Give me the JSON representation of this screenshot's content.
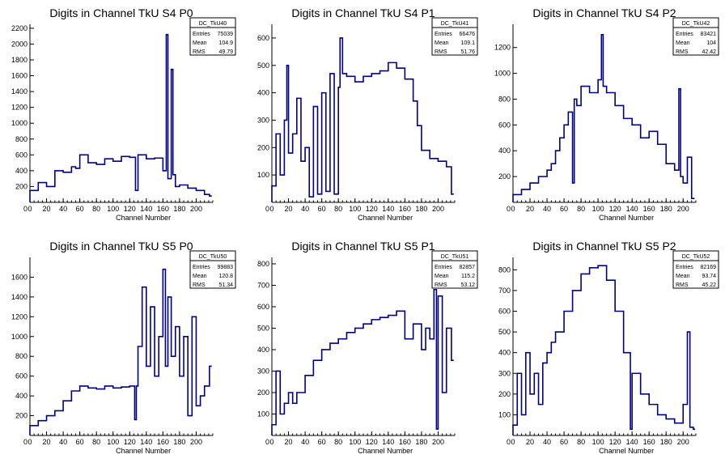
{
  "colors": {
    "histogram": "#000080",
    "axis": "#000000",
    "background": "#ffffff"
  },
  "chart_data": [
    {
      "type": "bar",
      "title": "Digits in Channel TkU S4 P0",
      "xlabel": "Channel Number",
      "ylabel": "",
      "xlim": [
        0,
        220
      ],
      "ylim": [
        0,
        2250
      ],
      "xticks": [
        0,
        20,
        40,
        60,
        80,
        100,
        120,
        140,
        160,
        180,
        200
      ],
      "yticks": [
        200,
        400,
        600,
        800,
        1000,
        1200,
        1400,
        1600,
        1800,
        2000,
        2200
      ],
      "stats": {
        "name": "DC_TkU40",
        "rows": [
          {
            "label": "Entries",
            "value": "75039"
          },
          {
            "label": "Mean",
            "value": "104.9"
          },
          {
            "label": "RMS",
            "value": "49.79"
          }
        ]
      },
      "x": [
        0,
        10,
        20,
        30,
        40,
        50,
        55,
        60,
        70,
        80,
        90,
        100,
        110,
        120,
        127,
        130,
        140,
        150,
        160,
        164,
        166,
        170,
        172,
        175,
        180,
        190,
        200,
        210,
        216
      ],
      "values": [
        150,
        250,
        200,
        400,
        380,
        450,
        430,
        600,
        500,
        480,
        550,
        520,
        580,
        570,
        150,
        600,
        550,
        560,
        400,
        2120,
        300,
        1680,
        350,
        200,
        220,
        180,
        150,
        100,
        80
      ]
    },
    {
      "type": "bar",
      "title": "Digits in Channel TkU S4 P1",
      "xlabel": "Channel Number",
      "ylabel": "",
      "xlim": [
        0,
        220
      ],
      "ylim": [
        0,
        650
      ],
      "xticks": [
        0,
        20,
        40,
        60,
        80,
        100,
        120,
        140,
        160,
        180,
        200
      ],
      "yticks": [
        100,
        200,
        300,
        400,
        500,
        600
      ],
      "stats": {
        "name": "DC_TkU41",
        "rows": [
          {
            "label": "Entries",
            "value": "66476"
          },
          {
            "label": "Mean",
            "value": "109.1"
          },
          {
            "label": "RMS",
            "value": "51.76"
          }
        ]
      },
      "x": [
        0,
        5,
        10,
        15,
        18,
        20,
        25,
        30,
        35,
        40,
        45,
        50,
        55,
        60,
        65,
        70,
        75,
        80,
        82,
        85,
        90,
        100,
        110,
        120,
        130,
        140,
        150,
        160,
        170,
        175,
        180,
        190,
        200,
        210,
        216
      ],
      "values": [
        60,
        250,
        100,
        300,
        500,
        180,
        250,
        380,
        150,
        200,
        20,
        350,
        30,
        400,
        40,
        470,
        30,
        420,
        600,
        470,
        460,
        440,
        460,
        470,
        480,
        510,
        490,
        450,
        370,
        280,
        190,
        160,
        150,
        130,
        30
      ]
    },
    {
      "type": "bar",
      "title": "Digits in Channel TkU S4 P2",
      "xlabel": "Channel Number",
      "ylabel": "",
      "xlim": [
        0,
        215
      ],
      "ylim": [
        0,
        1380
      ],
      "xticks": [
        0,
        20,
        40,
        60,
        80,
        100,
        120,
        140,
        160,
        180,
        200
      ],
      "yticks": [
        200,
        400,
        600,
        800,
        1000,
        1200
      ],
      "stats": {
        "name": "DC_TkU42",
        "rows": [
          {
            "label": "Entries",
            "value": "83421"
          },
          {
            "label": "Mean",
            "value": "104"
          },
          {
            "label": "RMS",
            "value": "42.42"
          }
        ]
      },
      "x": [
        0,
        10,
        20,
        30,
        40,
        45,
        50,
        55,
        60,
        65,
        70,
        72,
        75,
        80,
        90,
        100,
        104,
        106,
        110,
        120,
        130,
        140,
        150,
        160,
        170,
        180,
        190,
        195,
        197,
        200,
        205,
        210
      ],
      "values": [
        60,
        100,
        150,
        200,
        250,
        300,
        400,
        500,
        600,
        700,
        150,
        800,
        750,
        900,
        850,
        950,
        1300,
        900,
        850,
        750,
        650,
        600,
        500,
        550,
        450,
        300,
        250,
        880,
        200,
        150,
        350,
        30
      ]
    },
    {
      "type": "bar",
      "title": "Digits in Channel TkU S5 P0",
      "xlabel": "Channel Number",
      "ylabel": "",
      "xlim": [
        0,
        220
      ],
      "ylim": [
        0,
        1800
      ],
      "xticks": [
        0,
        20,
        40,
        60,
        80,
        100,
        120,
        140,
        160,
        180,
        200
      ],
      "yticks": [
        200,
        400,
        600,
        800,
        1000,
        1200,
        1400,
        1600
      ],
      "stats": {
        "name": "DC_TkU50",
        "rows": [
          {
            "label": "Entries",
            "value": "99883"
          },
          {
            "label": "Mean",
            "value": "120.8"
          },
          {
            "label": "RMS",
            "value": "51.34"
          }
        ]
      },
      "x": [
        0,
        10,
        20,
        30,
        40,
        50,
        60,
        70,
        80,
        90,
        100,
        110,
        120,
        126,
        128,
        130,
        135,
        140,
        145,
        150,
        155,
        160,
        163,
        166,
        170,
        175,
        180,
        185,
        190,
        195,
        200,
        205,
        210,
        216
      ],
      "values": [
        100,
        150,
        200,
        250,
        350,
        450,
        500,
        480,
        470,
        500,
        480,
        490,
        500,
        160,
        500,
        900,
        1500,
        700,
        1300,
        600,
        1000,
        1680,
        700,
        1400,
        800,
        1100,
        600,
        1000,
        200,
        1200,
        300,
        400,
        500,
        700
      ]
    },
    {
      "type": "bar",
      "title": "Digits in Channel TkU S5 P1",
      "xlabel": "Channel Number",
      "ylabel": "",
      "xlim": [
        0,
        220
      ],
      "ylim": [
        0,
        830
      ],
      "xticks": [
        0,
        20,
        40,
        60,
        80,
        100,
        120,
        140,
        160,
        180,
        200
      ],
      "yticks": [
        100,
        200,
        300,
        400,
        500,
        600,
        700,
        800
      ],
      "stats": {
        "name": "DC_TkU51",
        "rows": [
          {
            "label": "Entries",
            "value": "82857"
          },
          {
            "label": "Mean",
            "value": "115.2"
          },
          {
            "label": "RMS",
            "value": "53.12"
          }
        ]
      },
      "x": [
        0,
        5,
        10,
        15,
        20,
        25,
        30,
        40,
        50,
        60,
        70,
        80,
        90,
        100,
        110,
        120,
        130,
        140,
        150,
        160,
        170,
        180,
        185,
        190,
        195,
        198,
        200,
        205,
        210,
        216
      ],
      "values": [
        50,
        300,
        100,
        150,
        200,
        150,
        200,
        280,
        350,
        400,
        430,
        450,
        480,
        500,
        520,
        540,
        550,
        560,
        580,
        450,
        520,
        400,
        500,
        450,
        680,
        30,
        650,
        200,
        500,
        350
      ]
    },
    {
      "type": "bar",
      "title": "Digits in Channel TkU S5 P2",
      "xlabel": "Channel Number",
      "ylabel": "",
      "xlim": [
        0,
        215
      ],
      "ylim": [
        0,
        860
      ],
      "xticks": [
        0,
        20,
        40,
        60,
        80,
        100,
        120,
        140,
        160,
        180,
        200
      ],
      "yticks": [
        100,
        200,
        300,
        400,
        500,
        600,
        700,
        800
      ],
      "stats": {
        "name": "DC_TkU52",
        "rows": [
          {
            "label": "Entries",
            "value": "82169"
          },
          {
            "label": "Mean",
            "value": "93.74"
          },
          {
            "label": "RMS",
            "value": "45.22"
          }
        ]
      },
      "x": [
        0,
        5,
        10,
        15,
        20,
        25,
        30,
        35,
        40,
        45,
        50,
        60,
        70,
        80,
        90,
        100,
        110,
        120,
        130,
        138,
        140,
        150,
        160,
        170,
        180,
        190,
        200,
        205,
        208,
        212
      ],
      "values": [
        50,
        300,
        100,
        400,
        200,
        300,
        150,
        350,
        400,
        450,
        500,
        600,
        700,
        780,
        810,
        820,
        750,
        600,
        400,
        30,
        300,
        200,
        150,
        100,
        80,
        60,
        150,
        500,
        40,
        30
      ]
    }
  ]
}
